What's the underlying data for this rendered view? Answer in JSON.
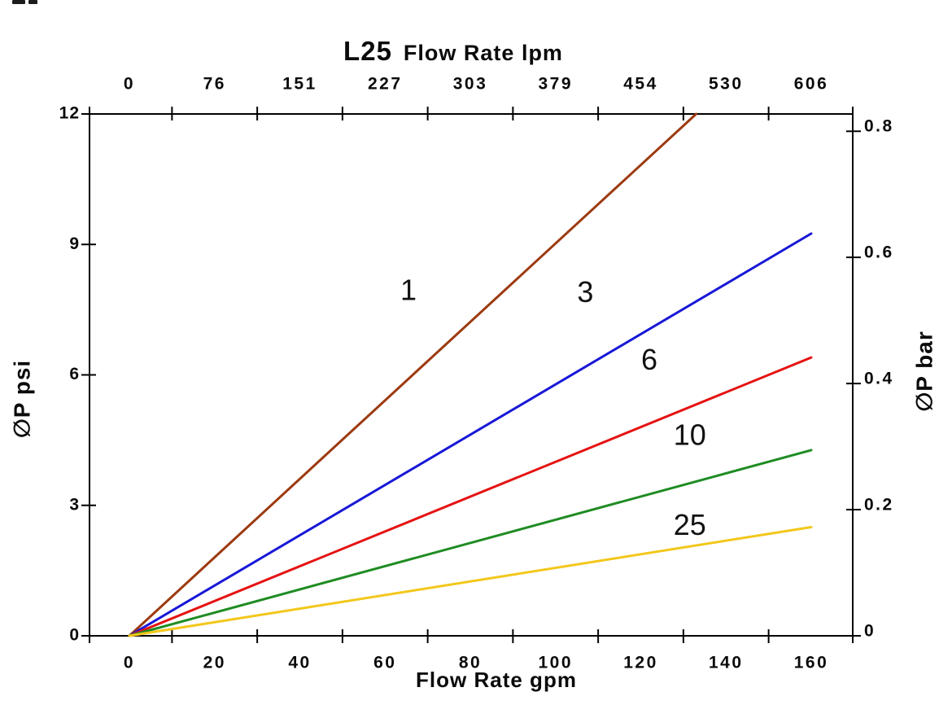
{
  "chart_data": {
    "type": "line",
    "model": "L25",
    "title": "Flow Rate lpm",
    "xlabel_bottom": "Flow Rate gpm",
    "ylabel_left": "∅P psi",
    "ylabel_right": "∅P bar",
    "grid": false,
    "legend": "inline labels next to each curve",
    "x_axis_top": {
      "unit": "lpm",
      "tick_labels": [
        "0",
        "76",
        "151",
        "227",
        "303",
        "379",
        "454",
        "530",
        "606"
      ],
      "tick_values_gpm": [
        0,
        20,
        40,
        60,
        80,
        100,
        120,
        140,
        160
      ]
    },
    "x_axis_bottom": {
      "unit": "gpm",
      "tick_labels": [
        "0",
        "20",
        "40",
        "60",
        "80",
        "100",
        "120",
        "140",
        "160"
      ],
      "tick_values_gpm": [
        0,
        20,
        40,
        60,
        80,
        100,
        120,
        140,
        160
      ],
      "minor_tick_values_gpm": [
        10,
        30,
        50,
        70,
        90,
        110,
        130,
        150
      ],
      "xlim_gpm": [
        -9.4,
        169.7
      ]
    },
    "y_axis_left": {
      "unit": "psi",
      "tick_labels": [
        "0",
        "3",
        "6",
        "9",
        "12"
      ],
      "tick_values_psi": [
        0,
        3,
        6,
        9,
        12
      ],
      "ylim_psi": [
        0,
        12
      ]
    },
    "y_axis_right": {
      "unit": "bar",
      "tick_labels": [
        "0",
        "0.2",
        "0.4",
        "0.6",
        "0.8"
      ],
      "tick_values_bar": [
        0,
        0.2,
        0.4,
        0.6,
        0.8
      ]
    },
    "series": [
      {
        "name": "1",
        "color": "#9C3A10",
        "points_gpm_psi": [
          [
            0,
            0
          ],
          [
            133,
            12
          ]
        ],
        "label_pos_gpm_psi": [
          65.5,
          7.9
        ]
      },
      {
        "name": "3",
        "color": "#1818D8",
        "points_gpm_psi": [
          [
            0,
            0
          ],
          [
            160,
            9.25
          ]
        ],
        "label_pos_gpm_psi": [
          107,
          7.85
        ]
      },
      {
        "name": "6",
        "color": "#E51212",
        "points_gpm_psi": [
          [
            0,
            0
          ],
          [
            160,
            6.4
          ]
        ],
        "label_pos_gpm_psi": [
          122,
          6.3
        ]
      },
      {
        "name": "10",
        "color": "#1E8C22",
        "points_gpm_psi": [
          [
            0,
            0
          ],
          [
            160,
            4.27
          ]
        ],
        "label_pos_gpm_psi": [
          131.5,
          4.57
        ]
      },
      {
        "name": "25",
        "color": "#F3C71B",
        "points_gpm_psi": [
          [
            0,
            0
          ],
          [
            160,
            2.5
          ]
        ],
        "label_pos_gpm_psi": [
          131.5,
          2.5
        ]
      }
    ],
    "colors": {
      "axis": "#000000",
      "text": "#0a0a0a"
    }
  }
}
